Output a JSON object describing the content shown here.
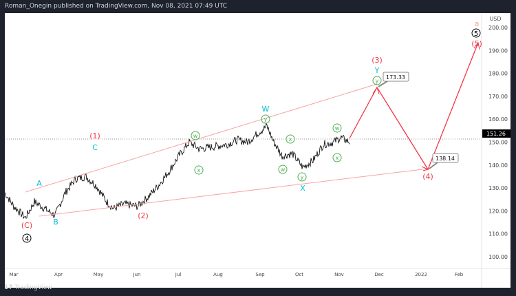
{
  "header": {
    "publisher_line": "Roman_Onegin published on TradingView.com, Nov 08, 2021 07:49 UTC"
  },
  "price_axis": {
    "currency": "USD",
    "ticks": [
      "200.00",
      "190.00",
      "180.00",
      "170.00",
      "160.00",
      "150.00",
      "140.00",
      "130.00",
      "120.00",
      "110.00",
      "100.00"
    ],
    "last_price": "151.26"
  },
  "time_axis": {
    "ticks": [
      "Mar",
      "Apr",
      "May",
      "Jun",
      "Jul",
      "Aug",
      "Sep",
      "Oct",
      "Nov",
      "Dec",
      "2022",
      "Feb"
    ]
  },
  "annotations": {
    "A": "A",
    "one": "(1)",
    "C": "C",
    "B": "B",
    "C_paren": "(C)",
    "four_circle": "4",
    "two": "(2)",
    "w1": "w",
    "x1": "x",
    "W": "W",
    "y1": "y",
    "w2": "w",
    "x2": "x",
    "y2": "y",
    "X": "X",
    "w3": "w",
    "x3": "x",
    "three": "(3)",
    "Y": "Y",
    "y3": "y",
    "target_high": "173.33",
    "four": "(4)",
    "target_low": "138.14",
    "a": "a",
    "five_circle": "5",
    "five": "(5)"
  },
  "colors": {
    "red": "#f23645",
    "cyan": "#00bcd4",
    "green": "#4caf50",
    "frame": "#1e222d"
  },
  "footer": {
    "brand": "TradingView"
  }
}
